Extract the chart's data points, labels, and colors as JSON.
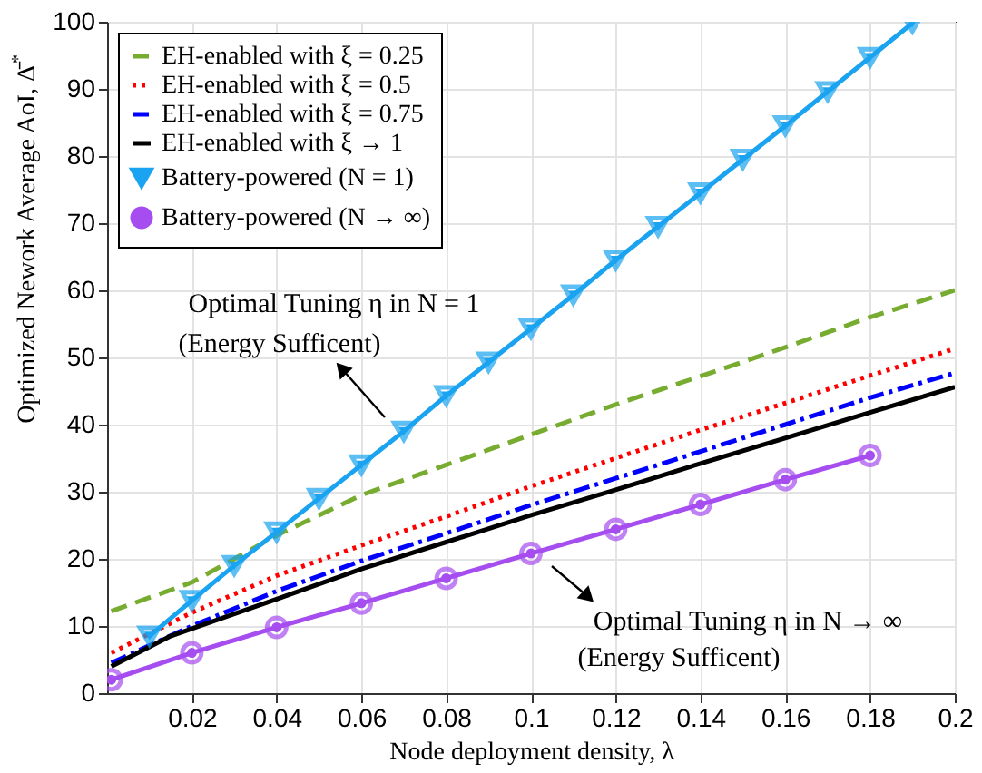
{
  "chart_data": {
    "type": "line",
    "xlabel": "Node deployment density, λ",
    "ylabel": "Optimized Nework Average AoI, Δ̄$^{*}$",
    "xlim": [
      0,
      0.2
    ],
    "xticks": [
      0.02,
      0.04,
      0.06,
      0.08,
      0.1,
      0.12,
      0.14,
      0.16,
      0.18,
      0.2
    ],
    "ylim": [
      0,
      100
    ],
    "yticks": [
      0,
      10,
      20,
      30,
      40,
      50,
      60,
      70,
      80,
      90,
      100
    ],
    "grid": true,
    "legend": "top left",
    "annotations": [
      "Optimal Tuning η in N = 1",
      "(Energy Sufficent)",
      "Optimal Tuning η in N → ∞",
      "(Energy Sufficent)"
    ],
    "series": [
      {
        "name": "EH-enabled with ξ = 0.25",
        "color": "#77ac30",
        "line_style": "dashed",
        "marker": "none",
        "x": [
          0.001,
          0.02,
          0.04,
          0.06,
          0.08,
          0.1,
          0.12,
          0.14,
          0.16,
          0.18,
          0.2
        ],
        "values": [
          12.2,
          16.5,
          23.5,
          29.5,
          34,
          38.5,
          43,
          47.2,
          51.5,
          56,
          60
        ]
      },
      {
        "name": "EH-enabled with ξ = 0.5",
        "color": "#ff0000",
        "line_style": "dotted",
        "marker": "none",
        "x": [
          0.001,
          0.02,
          0.04,
          0.06,
          0.08,
          0.1,
          0.12,
          0.14,
          0.16,
          0.18,
          0.2
        ],
        "values": [
          6,
          12,
          17.5,
          22,
          26.3,
          30.8,
          35,
          39.2,
          43.2,
          47.3,
          51.3
        ]
      },
      {
        "name": "EH-enabled with ξ = 0.75",
        "color": "#0000ff",
        "line_style": "dashdot",
        "marker": "none",
        "x": [
          0.001,
          0.02,
          0.04,
          0.06,
          0.08,
          0.1,
          0.12,
          0.14,
          0.16,
          0.18,
          0.2
        ],
        "values": [
          4.5,
          10,
          15.2,
          19.7,
          23.8,
          28,
          32,
          36,
          40,
          44,
          47.7
        ]
      },
      {
        "name": "EH-enabled with ξ → 1",
        "color": "#000000",
        "line_style": "solid",
        "marker": "none",
        "x": [
          0.001,
          0.015,
          0.03,
          0.04,
          0.06,
          0.08,
          0.1,
          0.12,
          0.14,
          0.16,
          0.18,
          0.2
        ],
        "values": [
          4,
          8.5,
          11.8,
          14,
          18.5,
          22.5,
          26.5,
          30.3,
          34.2,
          38,
          41.8,
          45.6
        ]
      },
      {
        "name": "Battery-powered (N = 1)",
        "color": "#1aa3f0",
        "line_style": "solid",
        "marker": "triangle",
        "x": [
          0.01,
          0.02,
          0.03,
          0.04,
          0.05,
          0.06,
          0.07,
          0.08,
          0.09,
          0.1,
          0.11,
          0.12,
          0.13,
          0.14,
          0.15,
          0.16,
          0.17,
          0.18,
          0.19
        ],
        "values": [
          8.5,
          13.8,
          19,
          24,
          29,
          34,
          39,
          44.3,
          49.3,
          54.3,
          59.3,
          64.5,
          69.5,
          74.5,
          79.5,
          84.5,
          89.6,
          94.7,
          99.8
        ]
      },
      {
        "name": "Battery-powered (N → ∞)",
        "color": "#a64df0",
        "line_style": "solid",
        "marker": "circle",
        "x": [
          0.001,
          0.02,
          0.04,
          0.06,
          0.08,
          0.1,
          0.12,
          0.14,
          0.16,
          0.18
        ],
        "values": [
          2,
          6,
          9.8,
          13.4,
          17.1,
          20.8,
          24.4,
          28.1,
          31.8,
          35.4
        ]
      }
    ]
  }
}
